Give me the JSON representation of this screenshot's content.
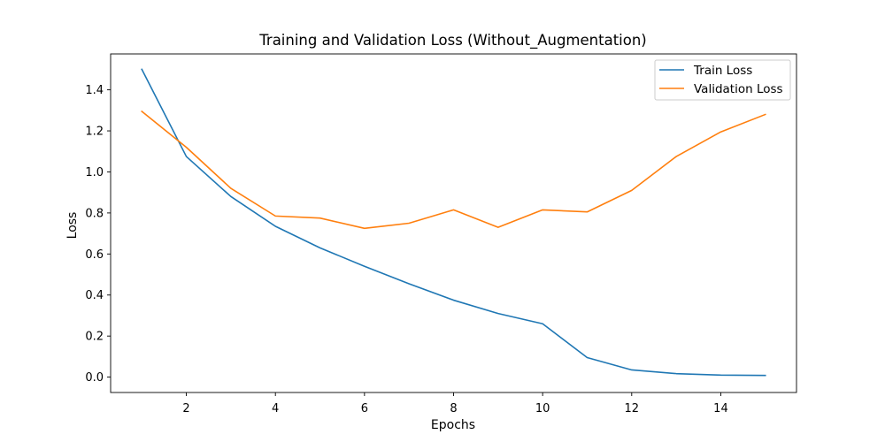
{
  "chart_data": {
    "type": "line",
    "title": "Training and Validation Loss (Without_Augmentation)",
    "xlabel": "Epochs",
    "ylabel": "Loss",
    "xlim": [
      0.3,
      15.7
    ],
    "ylim": [
      -0.075,
      1.575
    ],
    "xticks": [
      2,
      4,
      6,
      8,
      10,
      12,
      14
    ],
    "yticks": [
      0.0,
      0.2,
      0.4,
      0.6,
      0.8,
      1.0,
      1.2,
      1.4
    ],
    "grid": false,
    "legend_position": "top-right",
    "x": [
      1,
      2,
      3,
      4,
      5,
      6,
      7,
      8,
      9,
      10,
      11,
      12,
      13,
      14,
      15
    ],
    "series": [
      {
        "name": "Train Loss",
        "color": "#1f77b4",
        "values": [
          1.5,
          1.075,
          0.88,
          0.735,
          0.63,
          0.54,
          0.455,
          0.375,
          0.31,
          0.26,
          0.095,
          0.035,
          0.017,
          0.01,
          0.008
        ]
      },
      {
        "name": "Validation Loss",
        "color": "#ff7f0e",
        "values": [
          1.295,
          1.12,
          0.92,
          0.785,
          0.775,
          0.725,
          0.75,
          0.815,
          0.73,
          0.815,
          0.805,
          0.91,
          1.075,
          1.195,
          1.28
        ]
      }
    ]
  }
}
